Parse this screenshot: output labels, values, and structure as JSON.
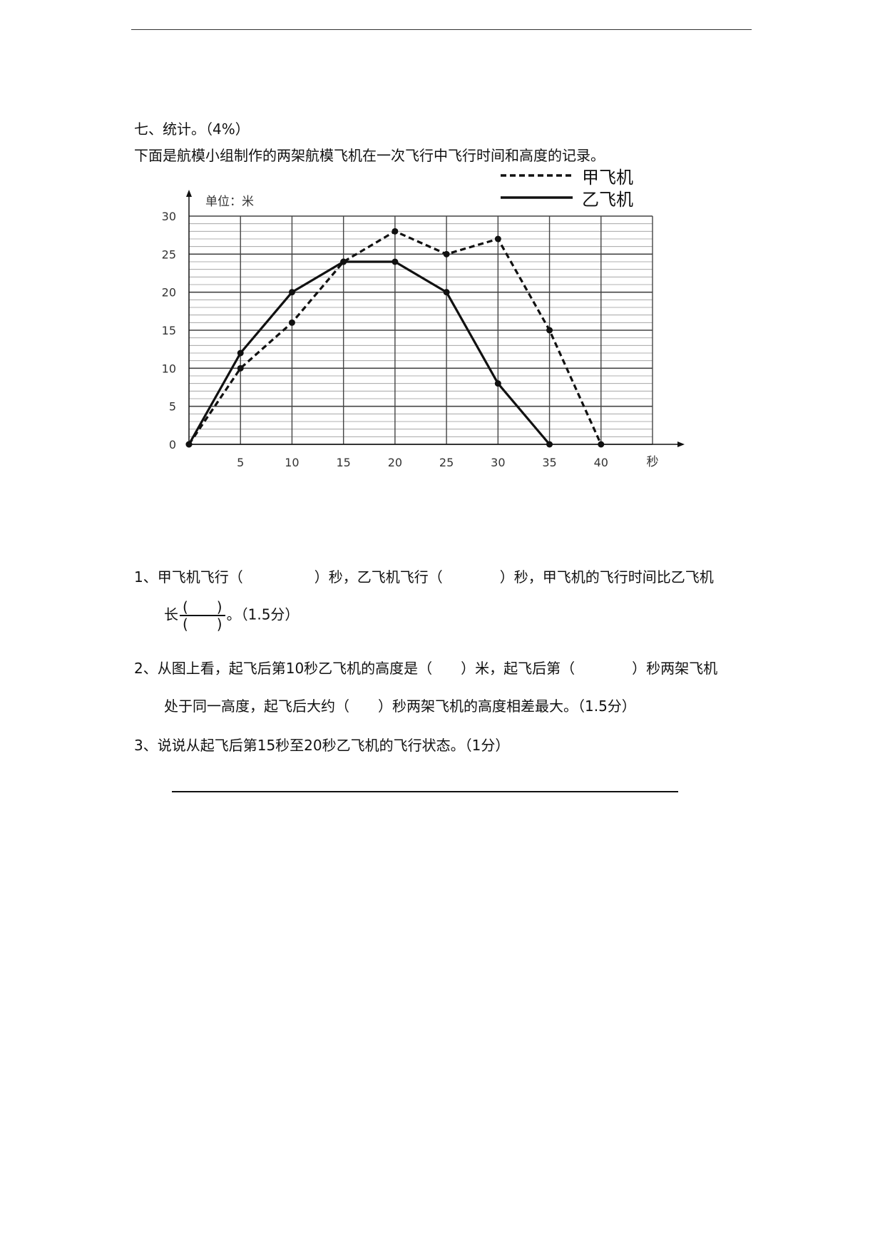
{
  "section": {
    "title": "七、统计。（4%）",
    "intro": "下面是航模小组制作的两架航模飞机在一次飞行中飞行时间和高度的记录。"
  },
  "chart_data": {
    "type": "line",
    "ylabel": "单位：米",
    "xlabel": "秒",
    "xlim": [
      0,
      45
    ],
    "ylim": [
      0,
      30
    ],
    "x_ticks": [
      5,
      10,
      15,
      20,
      25,
      30,
      35,
      40
    ],
    "x_tick_labels": [
      "5",
      "10",
      "15",
      "20",
      "25",
      "30",
      "35",
      "40"
    ],
    "y_ticks": [
      0,
      5,
      10,
      15,
      20,
      25,
      30
    ],
    "y_tick_labels": [
      "0",
      "5",
      "10",
      "15",
      "20",
      "25",
      "30"
    ],
    "grid": true,
    "grid_minor_y": 1,
    "legend_placement": "top-right",
    "series": [
      {
        "name": "甲飞机",
        "style": "dashed",
        "color": "#111111",
        "x": [
          0,
          5,
          10,
          15,
          20,
          25,
          30,
          35,
          40
        ],
        "y": [
          0,
          10,
          16,
          24,
          28,
          25,
          27,
          15,
          0
        ]
      },
      {
        "name": "乙飞机",
        "style": "solid",
        "color": "#111111",
        "x": [
          0,
          5,
          10,
          15,
          20,
          25,
          30,
          35
        ],
        "y": [
          0,
          12,
          20,
          24,
          24,
          20,
          8,
          0
        ]
      }
    ]
  },
  "questions": {
    "q1_line1": "1、甲飞机飞行（　　　　　）秒，乙飞机飞行（　　　　）秒，甲飞机的飞行时间比乙飞机",
    "q1_line2_prefix": "长",
    "q1_frac_num": "(　　)",
    "q1_frac_den": "(　　)",
    "q1_line2_suffix": "。（1.5分）",
    "q2_line1": "2、从图上看，起飞后第10秒乙飞机的高度是（　　）米，起飞后第（　　　　）秒两架飞机",
    "q2_line2": "处于同一高度，起飞后大约（　　）秒两架飞机的高度相差最大。（1.5分）",
    "q3": "3、说说从起飞后第15秒至20秒乙飞机的飞行状态。（1分）"
  }
}
